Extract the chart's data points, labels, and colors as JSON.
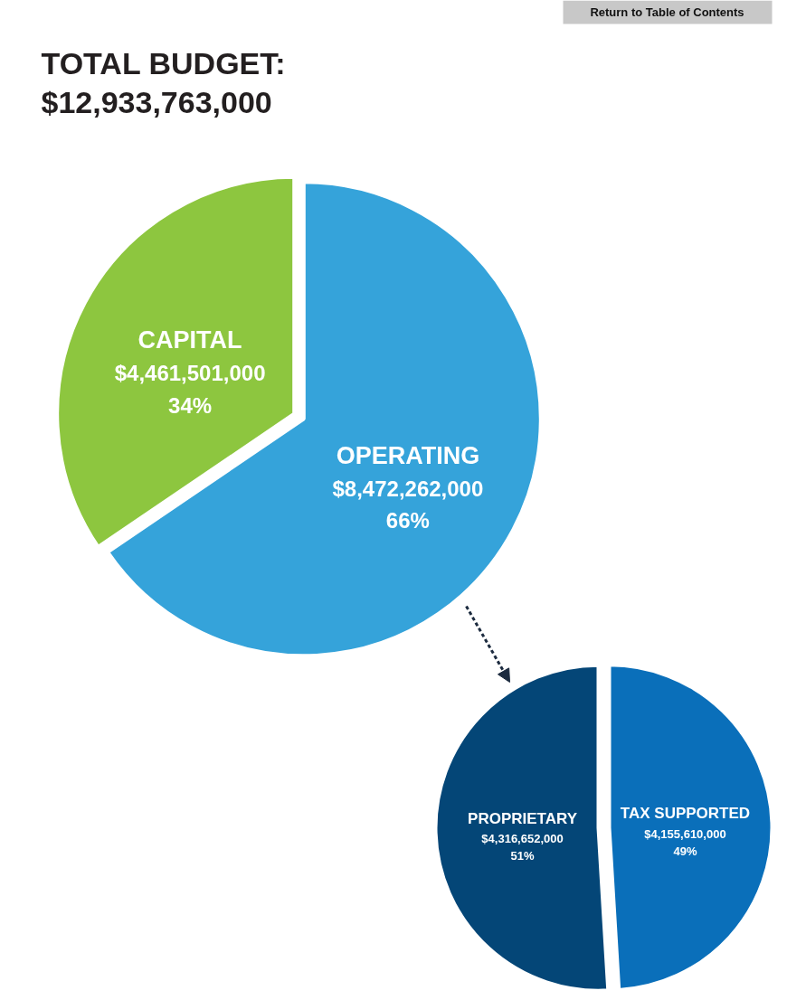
{
  "chart_data": [
    {
      "type": "pie",
      "title": "TOTAL BUDGET:\n$12,933,763,000",
      "categories": [
        "CAPITAL",
        "OPERATING"
      ],
      "values": [
        4461501000,
        8472262000
      ],
      "colors": [
        "#8dc63f",
        "#35a3da"
      ],
      "value_labels": [
        "$4,461,501,000\n34%",
        "$8,472,262,000\n66%"
      ],
      "annotations": [
        "Return to Table of Contents"
      ]
    },
    {
      "type": "pie",
      "categories": [
        "PROPRIETARY",
        "TAX SUPPORTED"
      ],
      "values": [
        4316652000,
        4155610000
      ],
      "colors": [
        "#044677",
        "#0a6fba"
      ],
      "value_labels": [
        "$4,316,652,000\n51%",
        "$4,155,610,000\n49%"
      ]
    }
  ]
}
